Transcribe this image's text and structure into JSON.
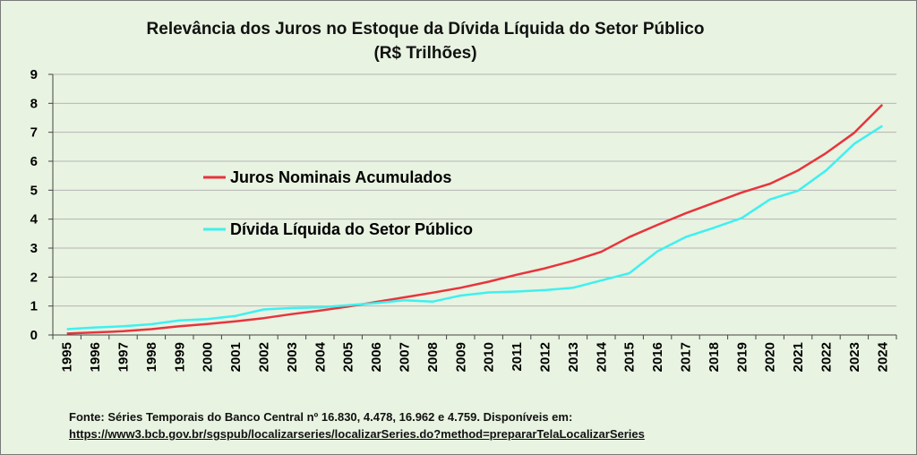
{
  "chart_data": {
    "type": "line",
    "title": "Relevância dos Juros no Estoque da Dívida Líquida do Setor Público",
    "subtitle": "(R$ Trilhões)",
    "x": [
      "1995",
      "1996",
      "1997",
      "1998",
      "1999",
      "2000",
      "2001",
      "2002",
      "2003",
      "2004",
      "2005",
      "2006",
      "2007",
      "2008",
      "2009",
      "2010",
      "2011",
      "2012",
      "2013",
      "2014",
      "2015",
      "2016",
      "2017",
      "2018",
      "2019",
      "2020",
      "2021",
      "2022",
      "2023",
      "2024"
    ],
    "yticks": [
      "0",
      "1",
      "2",
      "3",
      "4",
      "5",
      "6",
      "7",
      "8",
      "9"
    ],
    "ylim": [
      0,
      9
    ],
    "grid": true,
    "series": [
      {
        "name": "Juros Nominais Acumulados",
        "color": "#e8343c",
        "values": [
          0.05,
          0.09,
          0.13,
          0.2,
          0.3,
          0.38,
          0.47,
          0.58,
          0.72,
          0.84,
          0.98,
          1.14,
          1.3,
          1.46,
          1.63,
          1.84,
          2.08,
          2.3,
          2.56,
          2.87,
          3.38,
          3.8,
          4.2,
          4.56,
          4.92,
          5.22,
          5.68,
          6.28,
          6.98,
          7.95
        ]
      },
      {
        "name": "Dívida Líquida do Setor Público",
        "color": "#3ff0f0",
        "values": [
          0.2,
          0.26,
          0.3,
          0.37,
          0.5,
          0.55,
          0.66,
          0.88,
          0.93,
          0.95,
          1.03,
          1.1,
          1.2,
          1.15,
          1.36,
          1.47,
          1.5,
          1.55,
          1.63,
          1.88,
          2.13,
          2.89,
          3.38,
          3.7,
          4.04,
          4.68,
          4.98,
          5.68,
          6.6,
          7.22
        ]
      }
    ]
  },
  "footnote": {
    "source": "Fonte: Séries Temporais do Banco Central nº 16.830, 4.478, 16.962 e 4.759. Disponíveis em:",
    "link": "https://www3.bcb.gov.br/sgspub/localizarseries/localizarSeries.do?method=prepararTelaLocalizarSeries"
  }
}
